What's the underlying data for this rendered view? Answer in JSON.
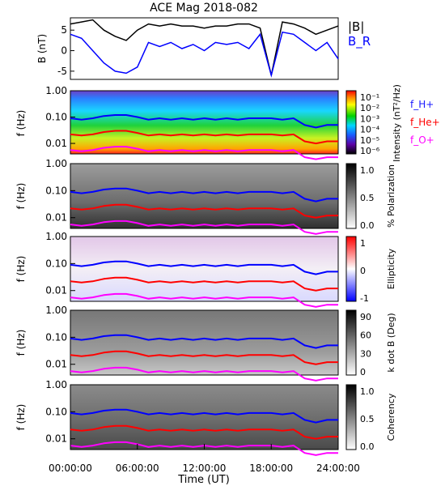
{
  "title": "ACE Mag 2018-082",
  "xlabel": "Time (UT)",
  "x_ticks": [
    "00:00:00",
    "06:00:00",
    "12:00:00",
    "18:00:00",
    "24:00:00"
  ],
  "freq_ticks": [
    "1.00",
    "0.10",
    "0.01"
  ],
  "panels": [
    {
      "ylabel": "B (nT)",
      "legend": [
        "|B|",
        "B_R"
      ],
      "y_ticks": [
        "5",
        "0",
        "-5"
      ]
    },
    {
      "ylabel": "f (Hz)",
      "colorbar_label": "Intensity (nT²/Hz)",
      "colorbar_ticks": [
        "10⁻¹",
        "10⁻²",
        "10⁻³",
        "10⁻⁴",
        "10⁻⁵",
        "10⁻⁶"
      ],
      "legend": [
        "f_H+",
        "f_He+",
        "f_O+"
      ]
    },
    {
      "ylabel": "f (Hz)",
      "colorbar_label": "% Polarization",
      "colorbar_ticks": [
        "1.0",
        "0.5",
        "0.0"
      ]
    },
    {
      "ylabel": "f (Hz)",
      "colorbar_label": "Ellipticity",
      "colorbar_ticks": [
        "1",
        "0",
        "-1"
      ]
    },
    {
      "ylabel": "f (Hz)",
      "colorbar_label": "k dot B (Deg)",
      "colorbar_ticks": [
        "90",
        "60",
        "30",
        "0"
      ]
    },
    {
      "ylabel": "f (Hz)",
      "colorbar_label": "Coherency",
      "colorbar_ticks": [
        "1.0",
        "0.5",
        "0.0"
      ]
    }
  ],
  "colors": {
    "B_total": "#000000",
    "B_R": "#0000ff",
    "f_H+": "#0000ff",
    "f_He+": "#ff0000",
    "f_O+": "#ff00ff"
  },
  "chart_data": {
    "type": "line",
    "x_range_hours": [
      0,
      24
    ],
    "panel_1": {
      "ylim": [
        -7,
        8
      ],
      "x_hours": [
        0,
        1,
        2,
        3,
        4,
        5,
        6,
        7,
        8,
        9,
        10,
        11,
        12,
        13,
        14,
        15,
        16,
        17,
        18,
        19,
        20,
        21,
        22,
        23,
        24
      ],
      "series": [
        {
          "name": "|B|",
          "values": [
            6.5,
            7,
            7.5,
            5,
            3.5,
            2.5,
            5,
            6.5,
            6,
            6.5,
            6,
            6,
            5.5,
            6,
            6,
            6.5,
            6.5,
            5.5,
            -6,
            7,
            6.5,
            5.5,
            4,
            5,
            6
          ]
        },
        {
          "name": "B_R",
          "values": [
            4,
            3,
            0,
            -3,
            -5,
            -5.5,
            -4,
            2,
            1,
            2,
            0.5,
            1.5,
            0,
            2,
            1.5,
            2,
            0.5,
            4,
            -6,
            4.5,
            4,
            2,
            0,
            2,
            -2
          ]
        }
      ]
    },
    "panels_2_to_6": {
      "yscale": "log",
      "ylim_hz": [
        0.004,
        1.0
      ],
      "x_hours": [
        0,
        1,
        2,
        3,
        4,
        5,
        6,
        7,
        8,
        9,
        10,
        11,
        12,
        13,
        14,
        15,
        16,
        17,
        18,
        19,
        20,
        21,
        22,
        23,
        24
      ],
      "series": [
        {
          "name": "f_H+",
          "values": [
            0.09,
            0.08,
            0.09,
            0.11,
            0.12,
            0.12,
            0.1,
            0.08,
            0.09,
            0.08,
            0.09,
            0.08,
            0.09,
            0.08,
            0.09,
            0.08,
            0.09,
            0.09,
            0.09,
            0.08,
            0.09,
            0.05,
            0.04,
            0.05,
            0.05
          ]
        },
        {
          "name": "f_He+",
          "values": [
            0.022,
            0.02,
            0.022,
            0.027,
            0.03,
            0.03,
            0.025,
            0.02,
            0.022,
            0.02,
            0.022,
            0.02,
            0.022,
            0.02,
            0.022,
            0.02,
            0.022,
            0.022,
            0.022,
            0.02,
            0.022,
            0.012,
            0.01,
            0.012,
            0.012
          ]
        },
        {
          "name": "f_O+",
          "values": [
            0.0056,
            0.005,
            0.0056,
            0.0068,
            0.0075,
            0.0075,
            0.0063,
            0.005,
            0.0056,
            0.005,
            0.0056,
            0.005,
            0.0056,
            0.005,
            0.0056,
            0.005,
            0.0056,
            0.0056,
            0.0056,
            0.005,
            0.0056,
            0.003,
            0.0025,
            0.003,
            0.003
          ]
        }
      ]
    }
  }
}
